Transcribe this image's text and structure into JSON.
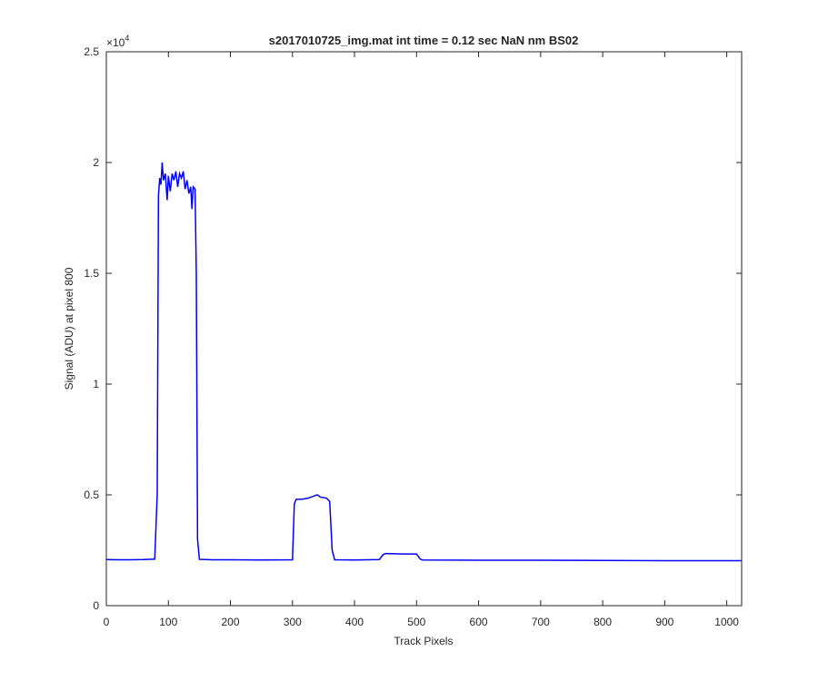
{
  "chart_data": {
    "type": "line",
    "title": "s2017010725_img.mat int time = 0.12 sec  NaN nm BS02",
    "x_label": "Track Pixels",
    "y_label": "Signal (ADU) at pixel 800",
    "y_exponent": {
      "base": "×10",
      "power": "4"
    },
    "xlim": [
      0,
      1024
    ],
    "xticks": [
      0,
      100,
      200,
      300,
      400,
      500,
      600,
      700,
      800,
      900,
      1000
    ],
    "ylim": [
      0,
      25000
    ],
    "yticks": [
      0,
      {
        "value": 5000,
        "label": "0.5"
      },
      {
        "value": 10000,
        "label": "1"
      },
      {
        "value": 15000,
        "label": "1.5"
      },
      {
        "value": 20000,
        "label": "2"
      },
      {
        "value": 25000,
        "label": "2.5"
      }
    ],
    "grid": false,
    "series": [
      {
        "color": "#0000ff",
        "x": [
          0,
          20,
          40,
          60,
          78,
          82,
          84,
          86,
          88,
          90,
          92,
          95,
          98,
          100,
          103,
          106,
          109,
          112,
          115,
          118,
          121,
          124,
          127,
          130,
          133,
          136,
          138,
          140,
          143,
          145,
          147,
          150,
          170,
          200,
          250,
          300,
          303,
          306,
          315,
          325,
          335,
          340,
          345,
          355,
          360,
          364,
          368,
          400,
          440,
          446,
          450,
          480,
          500,
          506,
          510,
          600,
          700,
          800,
          900,
          1024
        ],
        "values": [
          2080,
          2070,
          2070,
          2080,
          2100,
          5000,
          18500,
          19300,
          19000,
          20000,
          19200,
          19500,
          18300,
          19400,
          18700,
          19500,
          19200,
          19600,
          18900,
          19500,
          19300,
          19600,
          18800,
          19200,
          18600,
          18900,
          17900,
          18900,
          18800,
          15000,
          3000,
          2090,
          2070,
          2070,
          2060,
          2070,
          4600,
          4800,
          4800,
          4850,
          4950,
          5000,
          4900,
          4850,
          4700,
          2500,
          2070,
          2060,
          2080,
          2300,
          2350,
          2330,
          2330,
          2100,
          2060,
          2050,
          2050,
          2040,
          2030,
          2030
        ]
      }
    ]
  }
}
